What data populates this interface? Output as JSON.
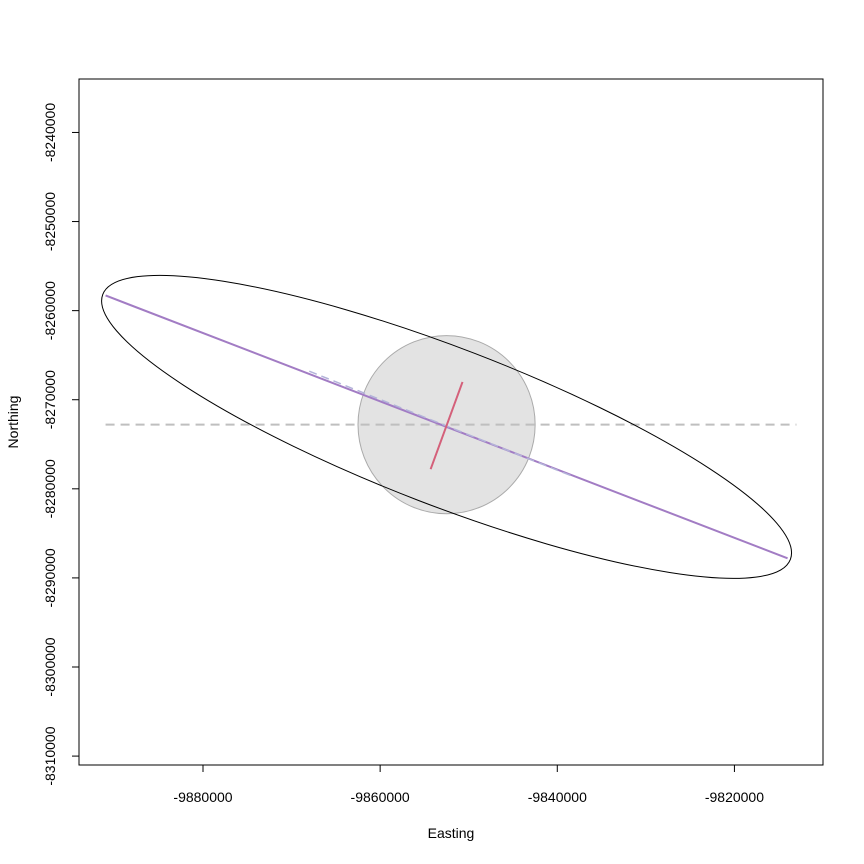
{
  "chart_data": {
    "type": "scatter",
    "title": "",
    "xlabel": "Easting",
    "ylabel": "Northing",
    "xlim": [
      -9894000,
      -9810000
    ],
    "ylim": [
      -8311000,
      -8234000
    ],
    "x_ticks": [
      -9880000,
      -9860000,
      -9840000,
      -9820000
    ],
    "x_tick_labels": [
      "-9880000",
      "-9860000",
      "-9840000",
      "-9820000"
    ],
    "y_ticks": [
      -8240000,
      -8250000,
      -8260000,
      -8270000,
      -8280000,
      -8290000,
      -8300000,
      -8310000
    ],
    "y_tick_labels": [
      "-8240000",
      "-8250000",
      "-8260000",
      "-8270000",
      "-8280000",
      "-8290000",
      "-8300000",
      "-8310000"
    ],
    "grid": false,
    "center": {
      "x": -9852500,
      "y": -8272800
    },
    "ellipse": {
      "semi_major_axis": 39000,
      "semi_minor_axis": 2000,
      "angle_deg": -21.5
    },
    "circle": {
      "radius": 10000,
      "fill": "#e3e3e3",
      "stroke": "#aaaaaa"
    },
    "horizontal_reference_line": {
      "y": -8272800,
      "x": [
        -9891000,
        -9813000
      ],
      "color": "#bfbfbf",
      "dashed": true
    },
    "major_axis_line": {
      "x": [
        -9891000,
        -9814000
      ],
      "y": [
        -8258300,
        -8287800
      ],
      "color": "#a27cc4"
    },
    "dashed_major_segment": {
      "x": [
        -9868000,
        -9838000
      ],
      "y": [
        -8266800,
        -8278700
      ],
      "color": "#b3b3d9"
    },
    "minor_axis_line": {
      "x": [
        -9850700,
        -9854300
      ],
      "y": [
        -8268000,
        -8277800
      ],
      "color": "#d4607a"
    },
    "ellipse_color": "#000000"
  }
}
